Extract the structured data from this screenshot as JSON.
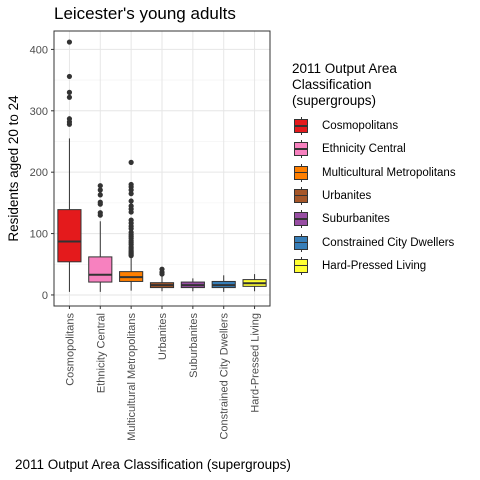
{
  "chart_data": {
    "type": "box",
    "title": "Leicester's young adults",
    "xlabel": "2011 Output Area Classification (supergroups)",
    "ylabel": "Residents aged 20 to 24",
    "ylim": [
      -18,
      430
    ],
    "yticks": [
      0,
      100,
      200,
      300,
      400
    ],
    "grid": true,
    "legend_position": "right",
    "legend_title": [
      "2011 Output Area",
      "Classification",
      "(supergroups)"
    ],
    "categories": [
      "Cosmopolitans",
      "Ethnicity Central",
      "Multicultural Metropolitans",
      "Urbanites",
      "Suburbanites",
      "Constrained City Dwellers",
      "Hard-Pressed Living"
    ],
    "series": [
      {
        "name": "Cosmopolitans",
        "color": "#E41A1C",
        "q1": 54,
        "median": 87,
        "q3": 139,
        "whisker_low": 5,
        "whisker_high": 255,
        "outliers": [
          412,
          356,
          330,
          322,
          287,
          282,
          278
        ]
      },
      {
        "name": "Ethnicity Central",
        "color": "#F781BF",
        "q1": 21,
        "median": 33,
        "q3": 62,
        "whisker_low": 5,
        "whisker_high": 120,
        "outliers": [
          178,
          171,
          163,
          151,
          148,
          134,
          130
        ]
      },
      {
        "name": "Multicultural Metropolitans",
        "color": "#FF7F00",
        "q1": 22,
        "median": 29,
        "q3": 38,
        "whisker_low": 7,
        "whisker_high": 60,
        "outliers": [
          216,
          180,
          176,
          171,
          165,
          153,
          145,
          140,
          135,
          122,
          117,
          112,
          108,
          102,
          98,
          95,
          92,
          88,
          85,
          82,
          78,
          75,
          72,
          70,
          68,
          66,
          64
        ]
      },
      {
        "name": "Urbanites",
        "color": "#A65628",
        "q1": 12,
        "median": 16,
        "q3": 20,
        "whisker_low": 6,
        "whisker_high": 30,
        "outliers": [
          42,
          37,
          34
        ]
      },
      {
        "name": "Suburbanites",
        "color": "#984EA3",
        "q1": 12,
        "median": 16,
        "q3": 21,
        "whisker_low": 6,
        "whisker_high": 27,
        "outliers": []
      },
      {
        "name": "Constrained City Dwellers",
        "color": "#377EB8",
        "q1": 12,
        "median": 16,
        "q3": 22,
        "whisker_low": 5,
        "whisker_high": 32,
        "outliers": []
      },
      {
        "name": "Hard-Pressed Living",
        "color": "#FFFF33",
        "q1": 14,
        "median": 19,
        "q3": 25,
        "whisker_low": 6,
        "whisker_high": 34,
        "outliers": []
      }
    ]
  }
}
